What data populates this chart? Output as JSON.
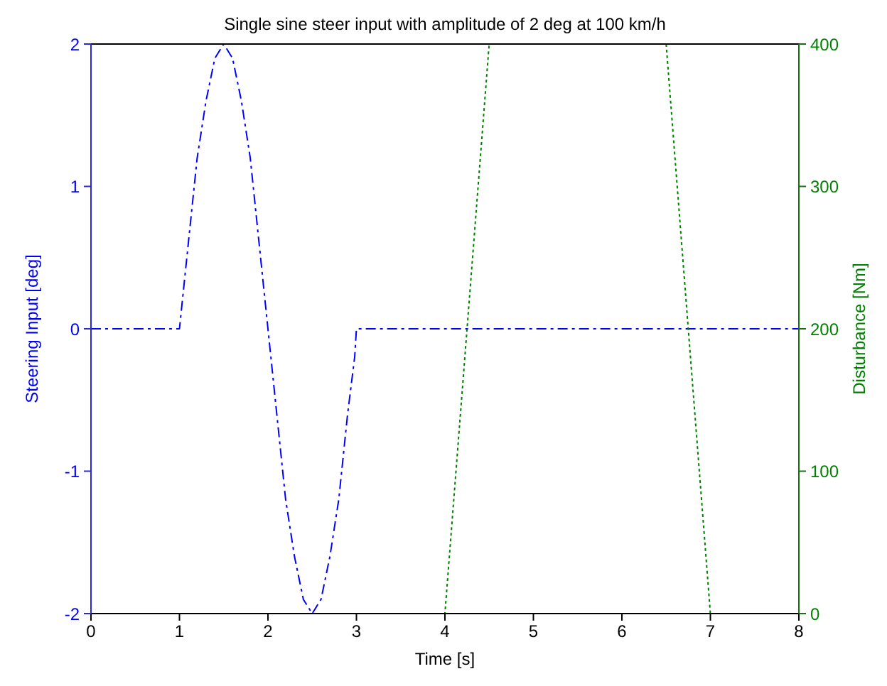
{
  "chart_data": {
    "type": "line",
    "title": "Single sine steer input with amplitude of 2 deg at 100 km/h",
    "xlabel": "Time [s]",
    "ylabel": "Steering Input [deg]",
    "y2label": "Disturbance [Nm]",
    "series": [
      {
        "color": "#0000ff",
        "line_style": "dashed",
        "x": [
          0,
          1,
          1.1,
          1.2,
          1.3,
          1.4,
          1.5,
          1.6,
          1.7,
          1.8,
          1.9,
          2.0,
          2.1,
          2.2,
          2.3,
          2.4,
          2.5,
          2.6,
          2.7,
          2.8,
          2.9,
          2.98,
          3.0,
          8
        ],
        "values": [
          0,
          0,
          0.6,
          1.2,
          1.6,
          1.9,
          2,
          1.9,
          1.6,
          1.2,
          0.6,
          0,
          -0.6,
          -1.2,
          -1.6,
          -1.9,
          -2,
          -1.9,
          -1.6,
          -1.2,
          -0.6,
          -0.2,
          0,
          0
        ]
      },
      {
        "color": "#008000",
        "line_style": "dotted",
        "axis": "y2",
        "x": [
          0,
          4,
          4.5,
          5.5,
          6.5,
          7,
          8
        ],
        "values": [
          0,
          0,
          400,
          null,
          400,
          0,
          0
        ]
      }
    ],
    "xlim": [
      0,
      8
    ],
    "xticks": [
      0,
      1,
      2,
      3,
      4,
      5,
      6,
      7,
      8
    ],
    "ylim": [
      -2,
      2
    ],
    "yticks": [
      -2,
      -1,
      0,
      1,
      2
    ],
    "y2lim": [
      0,
      400
    ],
    "y2ticks": [
      0,
      100,
      200,
      300,
      400
    ],
    "marker": "none"
  }
}
